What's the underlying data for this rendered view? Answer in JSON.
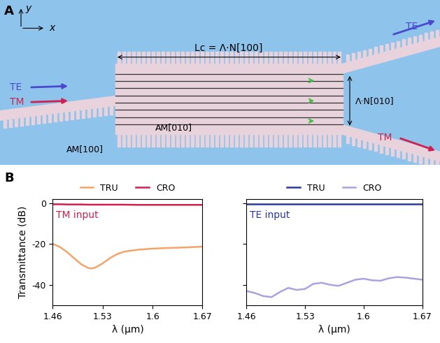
{
  "panel_labels": [
    "A",
    "B"
  ],
  "diagram": {
    "axes": [
      "x",
      "y"
    ],
    "inputs": [
      "TE",
      "TM"
    ],
    "outputs": [
      "TE",
      "TM"
    ],
    "length": "Lc = Λ·N[100]",
    "width": "Λ·N[010]",
    "metamaterials": [
      "AM[100]",
      "AM[010]"
    ]
  },
  "chart_data": [
    {
      "type": "line",
      "annotation": "TM input",
      "xlabel": "λ (µm)",
      "ylabel": "Transmittance (dB)",
      "x": [
        1.46,
        1.47,
        1.48,
        1.49,
        1.5,
        1.51,
        1.515,
        1.52,
        1.53,
        1.54,
        1.55,
        1.56,
        1.58,
        1.6,
        1.62,
        1.64,
        1.66,
        1.67
      ],
      "series": [
        {
          "name": "TRU",
          "color": "#f4a468",
          "values": [
            -20,
            -21.5,
            -24,
            -27,
            -30,
            -31.8,
            -32,
            -31.5,
            -29.5,
            -27,
            -25,
            -23.8,
            -22.8,
            -22.3,
            -22,
            -21.8,
            -21.5,
            -21.3
          ]
        },
        {
          "name": "CRO",
          "color": "#d1204f",
          "values": [
            -0.6,
            -0.6,
            -0.7,
            -0.7,
            -0.7,
            -0.8,
            -0.8,
            -0.8,
            -0.8,
            -0.8,
            -0.8,
            -0.8,
            -0.9,
            -0.9,
            -0.9,
            -0.9,
            -0.9,
            -0.9
          ]
        }
      ],
      "xlim": [
        1.46,
        1.67
      ],
      "ylim": [
        -50,
        2
      ],
      "xticks": [
        1.46,
        1.53,
        1.6,
        1.67
      ],
      "yticks": [
        -40,
        -20,
        0
      ],
      "legend": "upper center",
      "grid": false
    },
    {
      "type": "line",
      "annotation": "TE input",
      "xlabel": "λ (µm)",
      "x": [
        1.46,
        1.47,
        1.48,
        1.49,
        1.5,
        1.51,
        1.52,
        1.53,
        1.54,
        1.55,
        1.56,
        1.57,
        1.58,
        1.59,
        1.6,
        1.61,
        1.62,
        1.63,
        1.64,
        1.65,
        1.66,
        1.67
      ],
      "series": [
        {
          "name": "TRU",
          "color": "#2b3a9a",
          "values": [
            -0.3,
            -0.3,
            -0.3,
            -0.3,
            -0.3,
            -0.3,
            -0.3,
            -0.3,
            -0.3,
            -0.3,
            -0.3,
            -0.3,
            -0.3,
            -0.3,
            -0.3,
            -0.3,
            -0.3,
            -0.3,
            -0.3,
            -0.3,
            -0.3,
            -0.3
          ]
        },
        {
          "name": "CRO",
          "color": "#a9a3e0",
          "values": [
            -43,
            -44,
            -45.5,
            -46,
            -43.5,
            -41.5,
            -42.5,
            -42,
            -39.5,
            -39,
            -40,
            -40.5,
            -39,
            -37.5,
            -37,
            -37.8,
            -38,
            -36.8,
            -36.2,
            -36.5,
            -37,
            -37.5
          ]
        }
      ],
      "xlim": [
        1.46,
        1.67
      ],
      "ylim": [
        -50,
        2
      ],
      "xticks": [
        1.46,
        1.53,
        1.6,
        1.67
      ],
      "yticks": [
        -40,
        -20,
        0
      ],
      "legend": "upper center",
      "grid": false,
      "tick_labels": "x"
    }
  ]
}
